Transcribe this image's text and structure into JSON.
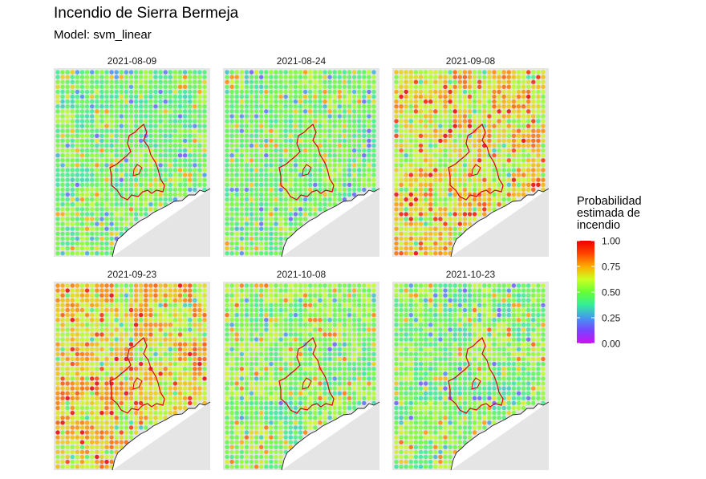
{
  "title": "Incendio de Sierra Bermeja",
  "subtitle": "Model: svm_linear",
  "chart_data": {
    "type": "heatmap",
    "title": "Incendio de Sierra Bermeja",
    "subtitle": "Model: svm_linear",
    "facet_variable": "date",
    "facets": [
      {
        "label": "2021-08-09",
        "predominant_range": [
          0.3,
          0.65
        ],
        "mean_probability": 0.45
      },
      {
        "label": "2021-08-24",
        "predominant_range": [
          0.3,
          0.65
        ],
        "mean_probability": 0.46
      },
      {
        "label": "2021-09-08",
        "predominant_range": [
          0.45,
          0.9
        ],
        "mean_probability": 0.66
      },
      {
        "label": "2021-09-23",
        "predominant_range": [
          0.45,
          0.9
        ],
        "mean_probability": 0.68
      },
      {
        "label": "2021-10-08",
        "predominant_range": [
          0.3,
          0.7
        ],
        "mean_probability": 0.48
      },
      {
        "label": "2021-10-23",
        "predominant_range": [
          0.3,
          0.7
        ],
        "mean_probability": 0.5
      }
    ],
    "legend": {
      "title_lines": [
        "Probabilidad",
        "estimada de",
        "incendio"
      ],
      "ticks": [
        "1.00",
        "0.75",
        "0.50",
        "0.25",
        "0.00"
      ],
      "scale_range": [
        0,
        1
      ],
      "colors": [
        "#cc11ee",
        "#7744ff",
        "#4499ee",
        "#33ee99",
        "#66ff33",
        "#ccff22",
        "#ffaa00",
        "#ff4400",
        "#ee0000"
      ],
      "placement": "right"
    },
    "grid": false,
    "overlay": "fire perimeter (red outline)",
    "coastline": true
  }
}
